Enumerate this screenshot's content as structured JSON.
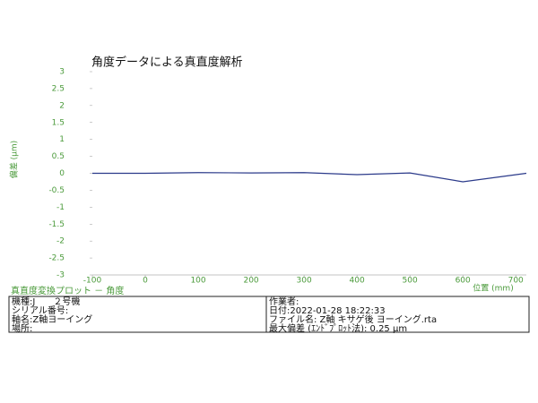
{
  "chart_data": {
    "type": "line",
    "title": "角度データによる真直度解析",
    "y_label": "偏差 (μm)",
    "x_label": "位置 (mm)",
    "x": [
      -100,
      0,
      100,
      200,
      300,
      400,
      500,
      600,
      720
    ],
    "values": [
      0,
      0,
      0.02,
      0.01,
      0.02,
      -0.04,
      0.01,
      -0.25,
      0
    ],
    "color": "#2b3a8a",
    "xlim": [
      -100,
      720
    ],
    "xticks": [
      -100,
      0,
      100,
      200,
      300,
      400,
      500,
      600,
      700
    ],
    "ylim": [
      -3,
      3
    ],
    "yticks": [
      -3,
      -2.5,
      -2,
      -1.5,
      -1,
      -0.5,
      0,
      0.5,
      1,
      1.5,
      2,
      2.5,
      3
    ],
    "label_color": "#4a9a3a"
  },
  "info": {
    "caption": "真直度変換プロット － 角度",
    "left": [
      "機種:J　　２号機",
      "シリアル番号:",
      "軸名:Z軸ヨーイング",
      "場所:"
    ],
    "right": [
      "作業者:",
      "日付:2022-01-28 18:22:33",
      "ファイル名: Z軸 キサゲ後 ヨーイング.rta",
      "最大偏差 (ｴﾝﾄﾞﾌﾟﾛｯﾄ法): 0.25 μm"
    ]
  }
}
